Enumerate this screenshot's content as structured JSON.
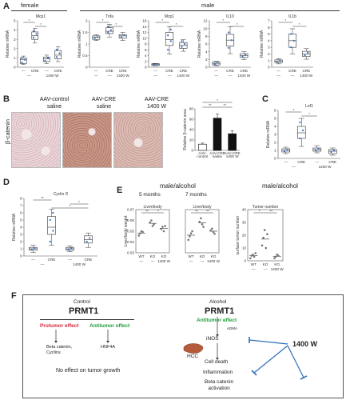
{
  "panel_a": {
    "letter": "A",
    "group_female": "female",
    "group_male": "male",
    "charts": [
      {
        "title": "Mcp1",
        "ylabel": "Relative mRNA",
        "ticks": [
          "0",
          "1",
          "2",
          "3",
          "4",
          "5"
        ],
        "ymax": 5,
        "boxes": [
          {
            "q1": 0.4,
            "med": 0.8,
            "q3": 1.0,
            "lo": 0.3,
            "hi": 1.2,
            "pts": [
              0.5,
              0.8,
              1.0
            ]
          },
          {
            "q1": 3.0,
            "med": 3.4,
            "q3": 3.8,
            "lo": 2.6,
            "hi": 4.2,
            "pts": [
              3.2,
              3.6,
              3.9
            ]
          },
          {
            "q1": 0.6,
            "med": 0.9,
            "q3": 1.1,
            "lo": 0.4,
            "hi": 1.3,
            "pts": [
              0.7,
              1.0
            ]
          },
          {
            "q1": 0.9,
            "med": 1.3,
            "q3": 1.8,
            "lo": 0.6,
            "hi": 2.2,
            "pts": [
              1.1,
              1.5,
              1.9
            ]
          }
        ],
        "sig": [
          {
            "a": 0,
            "b": 1,
            "t": "*"
          },
          {
            "a": 1,
            "b": 2,
            "t": "*"
          }
        ]
      },
      {
        "title": "Tnfa",
        "ylabel": "Relative mRNA",
        "ticks": [
          "0",
          "0.5",
          "1",
          "1.5",
          "2"
        ],
        "ymax": 2,
        "boxes": [
          {
            "q1": 1.2,
            "med": 1.3,
            "q3": 1.35,
            "lo": 1.15,
            "hi": 1.4,
            "pts": [
              1.25,
              1.3
            ]
          },
          {
            "q1": 1.45,
            "med": 1.55,
            "q3": 1.7,
            "lo": 1.3,
            "hi": 1.85,
            "pts": [
              1.5,
              1.6,
              1.75
            ]
          },
          {
            "q1": 1.25,
            "med": 1.35,
            "q3": 1.4,
            "lo": 1.15,
            "hi": 1.5,
            "pts": [
              1.3,
              1.38
            ]
          }
        ],
        "sig": [
          {
            "a": 0,
            "b": 1,
            "t": "*"
          },
          {
            "a": 1,
            "b": 2,
            "t": "*"
          }
        ]
      },
      {
        "title": "Mcp1",
        "ylabel": "Relative mRNA",
        "ticks": [
          "0",
          "2",
          "4",
          "6",
          "8",
          "10",
          "12",
          "14",
          "16"
        ],
        "ymax": 16,
        "boxes": [
          {
            "q1": 0.6,
            "med": 1.0,
            "q3": 1.2,
            "lo": 0.5,
            "hi": 1.3,
            "pts": [
              0.8,
              1.1
            ]
          },
          {
            "q1": 7.5,
            "med": 9.5,
            "q3": 12,
            "lo": 4.5,
            "hi": 14,
            "pts": [
              6,
              9,
              11,
              13
            ]
          },
          {
            "q1": 6.5,
            "med": 7.5,
            "q3": 8.5,
            "lo": 5.5,
            "hi": 9.5,
            "pts": [
              7,
              8,
              9
            ]
          }
        ],
        "sig": [
          {
            "a": 0,
            "b": 1,
            "t": "*"
          },
          {
            "a": 1,
            "b": 2,
            "t": "*"
          }
        ]
      },
      {
        "title": "IL10",
        "ylabel": "Relative mRNA",
        "ticks": [
          "0",
          "2",
          "4",
          "6",
          "8",
          "10",
          "12"
        ],
        "ymax": 12,
        "boxes": [
          {
            "q1": 0.6,
            "med": 1.0,
            "q3": 1.3,
            "lo": 0.4,
            "hi": 1.5,
            "pts": [
              0.8,
              1.2
            ]
          },
          {
            "q1": 5.5,
            "med": 7,
            "q3": 8.5,
            "lo": 3.5,
            "hi": 10.5,
            "pts": [
              5,
              7,
              9
            ]
          },
          {
            "q1": 2.5,
            "med": 3,
            "q3": 3.5,
            "lo": 2,
            "hi": 4,
            "pts": [
              2.8,
              3.3
            ]
          }
        ],
        "sig": [
          {
            "a": 0,
            "b": 1,
            "t": "*"
          },
          {
            "a": 1,
            "b": 2,
            "t": "*"
          }
        ]
      },
      {
        "title": "IL1b",
        "ylabel": "Relative mRNA",
        "ticks": [
          "0",
          "1",
          "2",
          "3",
          "4",
          "5",
          "6",
          "7"
        ],
        "ymax": 7,
        "boxes": [
          {
            "q1": 0.7,
            "med": 0.9,
            "q3": 1.1,
            "lo": 0.5,
            "hi": 1.3,
            "pts": [
              0.8,
              1.0
            ]
          },
          {
            "q1": 3.0,
            "med": 4.0,
            "q3": 5.0,
            "lo": 2.0,
            "hi": 5.8,
            "pts": [
              3,
              4,
              5
            ]
          },
          {
            "q1": 1.6,
            "med": 2.0,
            "q3": 2.4,
            "lo": 1.2,
            "hi": 2.8,
            "pts": [
              1.8,
              2.2
            ]
          }
        ],
        "sig": [
          {
            "a": 0,
            "b": 1,
            "t": "*"
          },
          {
            "a": 1,
            "b": 2,
            "t": "*"
          }
        ]
      }
    ],
    "xlabels_female": [
      "—",
      "CRE",
      "—",
      "CRE"
    ],
    "sub_female": [
      "—",
      "1400 W"
    ],
    "xlabels_male": [
      "—",
      "CRE",
      "CRE"
    ],
    "sub_male": [
      "—",
      "—",
      "1400 W"
    ]
  },
  "panel_b": {
    "letter": "B",
    "side_label": "β-catenin",
    "titles": [
      "AAV-control\nsaline",
      "AAV-CRE\nsaline",
      "AAV-CRE\n1400 W"
    ],
    "bar": {
      "values": [
        12,
        62,
        32
      ],
      "errors": [
        2,
        8,
        6
      ],
      "ymax": 80,
      "ticks": [
        "0",
        "20",
        "40",
        "60",
        "80"
      ],
      "ylabel": "Relative β-catenin area",
      "xlabels": [
        "AAV-\ncontrol",
        "AAV-CRE\nsaline",
        "AAV-CRE\n1400 W"
      ],
      "sig": [
        "*",
        "**",
        "**"
      ]
    }
  },
  "panel_c": {
    "letter": "C",
    "title": "Lef1",
    "ylabel": "Relative mRNA",
    "ticks": [
      "0",
      "1",
      "2",
      "3",
      "4",
      "5",
      "6"
    ],
    "ymax": 6,
    "boxes": [
      {
        "q1": 0.8,
        "med": 1.0,
        "q3": 1.2,
        "lo": 0.6,
        "hi": 1.4,
        "pts": [
          0.9,
          1.1
        ]
      },
      {
        "q1": 2.5,
        "med": 3.2,
        "q3": 4.0,
        "lo": 1.5,
        "hi": 5.0,
        "pts": [
          2.5,
          3.5,
          4.5
        ]
      },
      {
        "q1": 0.9,
        "med": 1.1,
        "q3": 1.3,
        "lo": 0.7,
        "hi": 1.6,
        "pts": [
          1.0,
          1.2
        ]
      },
      {
        "q1": 0.6,
        "med": 0.9,
        "q3": 1.1,
        "lo": 0.4,
        "hi": 1.3,
        "pts": [
          0.8,
          1.0
        ]
      }
    ],
    "sig": [
      {
        "a": 0,
        "b": 1,
        "t": "*"
      },
      {
        "a": 1,
        "b": 2,
        "t": "*"
      }
    ],
    "xlabels": [
      "—",
      "CRE",
      "—",
      "CRE"
    ],
    "sub": [
      "—",
      "1400 W"
    ]
  },
  "panel_d": {
    "letter": "D",
    "title": "Cyclin D",
    "ylabel": "Relative mRNA",
    "ticks": [
      "0",
      "1",
      "2",
      "3",
      "4",
      "5",
      "6",
      "7",
      "8"
    ],
    "ymax": 8,
    "boxes": [
      {
        "q1": 0.8,
        "med": 1.0,
        "q3": 1.2,
        "lo": 0.5,
        "hi": 1.5,
        "pts": [
          0.9,
          1.1
        ]
      },
      {
        "q1": 3.0,
        "med": 4.0,
        "q3": 5.5,
        "lo": 1.5,
        "hi": 6.5,
        "pts": [
          2,
          3.5,
          5,
          6
        ]
      },
      {
        "q1": 0.8,
        "med": 1.0,
        "q3": 1.2,
        "lo": 0.6,
        "hi": 1.4,
        "pts": [
          0.9,
          1.1
        ]
      },
      {
        "q1": 1.8,
        "med": 2.3,
        "q3": 2.8,
        "lo": 1.2,
        "hi": 3.2,
        "pts": [
          2,
          2.5
        ]
      }
    ],
    "sig": [
      {
        "a": 0,
        "b": 1,
        "t": "**"
      },
      {
        "a": 2,
        "b": 3,
        "t": "*"
      },
      {
        "a": 1,
        "b": 3,
        "t": "*"
      }
    ],
    "xlabels": [
      "—",
      "CRE",
      "—",
      "CRE"
    ],
    "sub": [
      "—",
      "1400 W"
    ]
  },
  "panel_e": {
    "letter": "E",
    "header": "male/alcohol",
    "header2": "male/alcohol",
    "sub1": "5 months",
    "sub2": "7 months",
    "ylabel1": "Liver/body weight",
    "ylabel2": "surface tumor number",
    "chart1_title": "Liver/body",
    "chart2_title": "Liver/body",
    "chart3_title": "Tumor number",
    "xlabels": [
      "WT",
      "KO",
      "KO"
    ],
    "sub": [
      "—",
      "—",
      "1400 W"
    ],
    "sig1": [
      "**",
      "*"
    ],
    "sig2": [
      "**",
      "**"
    ],
    "sig3": [
      "*",
      "**"
    ]
  },
  "panel_f": {
    "letter": "F",
    "control_title": "Control",
    "control_prmt": "PRMT1",
    "protumor": "Protumor effect",
    "antitumor": "Antitumor effect",
    "beta": "Beta catenin,\nCyclins",
    "hnf": "HNF4A",
    "no_effect": "No effect on tumor growth",
    "alcohol_title": "Alcohol",
    "alcohol_prmt": "PRMT1",
    "antitumor2": "Antitumor effect",
    "adma": "ADMA",
    "inos": "iNOS",
    "hcc": "HCC",
    "cell_death": "Cell death",
    "inflammation": "Inflammation",
    "beta_act": "Beta catenin\nactivation",
    "inhibitor": "1400 W",
    "colors": {
      "protumor": "#d7263d",
      "antitumor": "#1f9e3b",
      "accent": "#2c6fbb"
    }
  }
}
